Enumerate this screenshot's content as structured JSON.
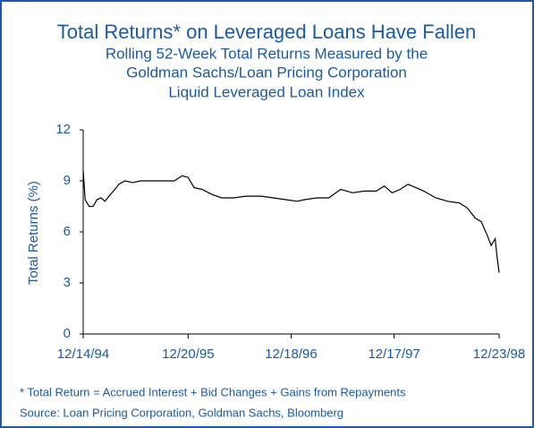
{
  "chart_data": {
    "type": "line",
    "title": "Total Returns* on Leveraged Loans Have Fallen",
    "subtitle": [
      "Rolling 52-Week Total Returns Measured by the",
      "Goldman Sachs/Loan Pricing Corporation",
      "Liquid Leveraged Loan Index"
    ],
    "y_label": "Total Returns (%)",
    "notes": [
      "* Total Return = Accrued Interest + Bid Changes + Gains from Repayments",
      "Source: Loan Pricing Corporation, Goldman Sachs, Bloomberg"
    ],
    "x": [
      0,
      1,
      3,
      5,
      7,
      9,
      11,
      13,
      16,
      18,
      21,
      25,
      29,
      34,
      40,
      46,
      50,
      53,
      56,
      60,
      65,
      70,
      76,
      82,
      90,
      96,
      102,
      108,
      112,
      118,
      124,
      130,
      136,
      142,
      148,
      152,
      156,
      160,
      164,
      168,
      172,
      178,
      184,
      190,
      194,
      198,
      201,
      204,
      206,
      208,
      209,
      210
    ],
    "series": [
      {
        "name": "Total Return",
        "color": "#000000",
        "values": [
          9.6,
          7.9,
          7.5,
          7.5,
          7.9,
          8.0,
          7.8,
          8.1,
          8.5,
          8.8,
          9.0,
          8.9,
          9.0,
          9.0,
          9.0,
          9.0,
          9.3,
          9.2,
          8.6,
          8.5,
          8.2,
          8.0,
          8.0,
          8.1,
          8.1,
          8.0,
          7.9,
          7.8,
          7.9,
          8.0,
          8.0,
          8.5,
          8.3,
          8.4,
          8.4,
          8.7,
          8.3,
          8.5,
          8.8,
          8.6,
          8.4,
          8.0,
          7.8,
          7.7,
          7.4,
          6.8,
          6.6,
          5.8,
          5.2,
          5.6,
          4.5,
          3.6
        ]
      }
    ],
    "xlim": [
      0,
      210
    ],
    "xticks": [
      {
        "value": 0,
        "label": "12/14/94"
      },
      {
        "value": 53,
        "label": "12/20/95"
      },
      {
        "value": 105,
        "label": "12/18/96"
      },
      {
        "value": 157,
        "label": "12/17/97"
      },
      {
        "value": 210,
        "label": "12/23/98"
      }
    ],
    "ylim": [
      0,
      12
    ],
    "yticks": [
      0,
      3,
      6,
      9,
      12
    ],
    "grid": false,
    "text_color": "#1a5aa6"
  }
}
